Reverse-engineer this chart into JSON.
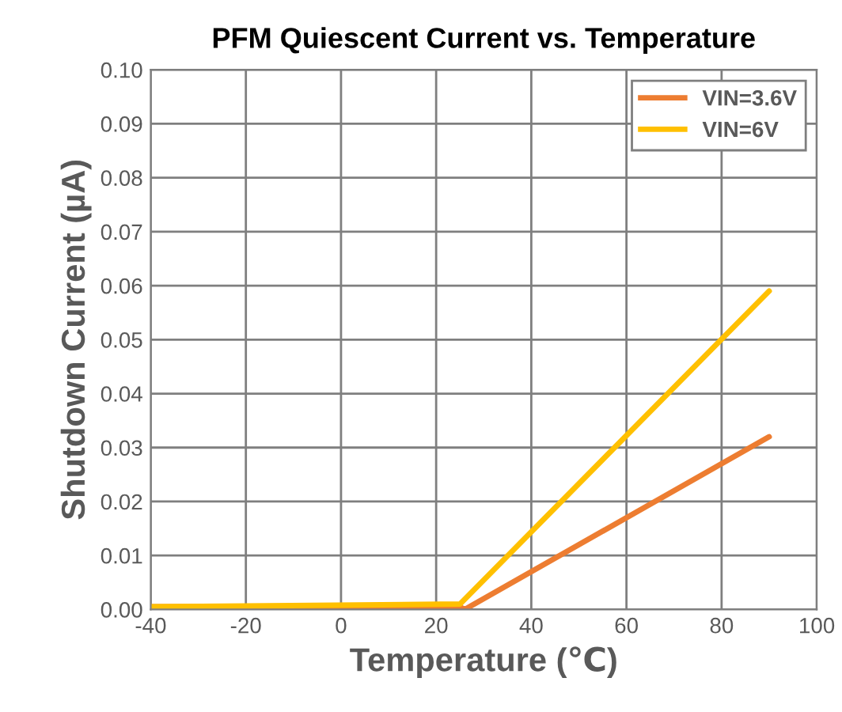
{
  "chart_data": {
    "type": "line",
    "title": "PFM Quiescent Current vs. Temperature",
    "xlabel": "Temperature (℃)",
    "ylabel": "Shutdown Current (µA)",
    "series": [
      {
        "name": "VIN=3.6V",
        "color": "#ed7d31",
        "x": [
          -40,
          25,
          26,
          90
        ],
        "values": [
          0.0005,
          0.0005,
          0.0,
          0.032
        ]
      },
      {
        "name": "VIN=6V",
        "color": "#ffc000",
        "x": [
          -40,
          25,
          90
        ],
        "values": [
          0.0005,
          0.001,
          0.059
        ]
      }
    ],
    "xlim": [
      -40,
      100
    ],
    "xticks": [
      -40,
      -20,
      0,
      20,
      40,
      60,
      80,
      100
    ],
    "ylim": [
      0,
      0.1
    ],
    "yticks": [
      {
        "value": 0,
        "label": "0.00"
      },
      {
        "value": 0.01,
        "label": "0.01"
      },
      {
        "value": 0.02,
        "label": "0.02"
      },
      {
        "value": 0.03,
        "label": "0.03"
      },
      {
        "value": 0.04,
        "label": "0.04"
      },
      {
        "value": 0.05,
        "label": "0.05"
      },
      {
        "value": 0.06,
        "label": "0.06"
      },
      {
        "value": 0.07,
        "label": "0.07"
      },
      {
        "value": 0.08,
        "label": "0.08"
      },
      {
        "value": 0.09,
        "label": "0.09"
      },
      {
        "value": 0.1,
        "label": "0.10"
      }
    ],
    "grid": true,
    "legend": "top right",
    "marker": "none",
    "line_style": "solid"
  }
}
